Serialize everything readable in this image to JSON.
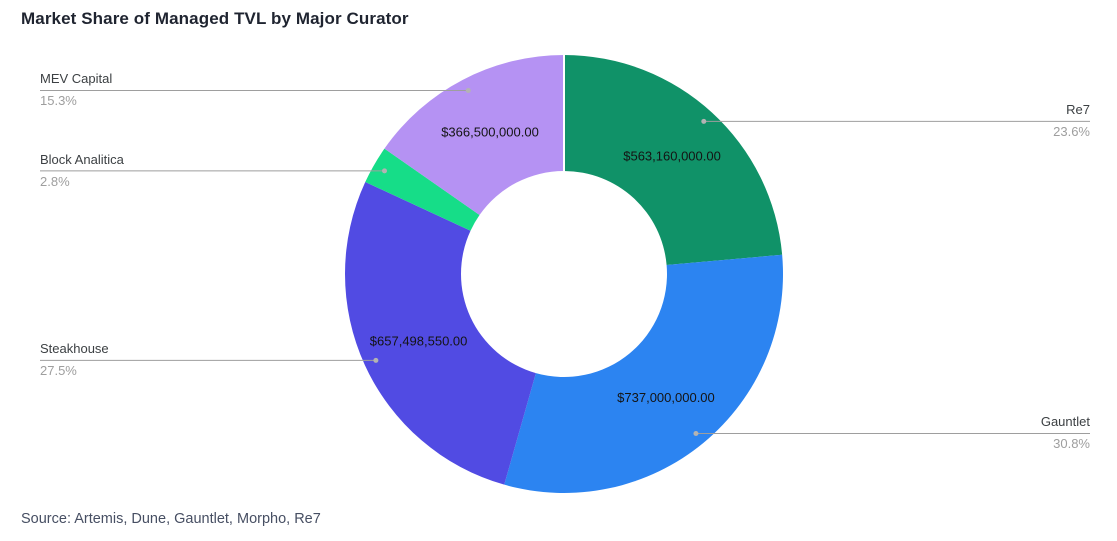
{
  "chart": {
    "title": "Market Share of Managed TVL by Major Curator",
    "source_note": "Source: Artemis, Dune, Gauntlet, Morpho, Re7"
  },
  "chart_data": {
    "type": "pie",
    "subtype": "donut",
    "title": "Market Share of Managed TVL by Major Curator",
    "source_note": "Source: Artemis, Dune, Gauntlet, Morpho, Re7",
    "direction": "clockwise",
    "start_angle_deg": 0,
    "inner_radius_ratio": 0.47,
    "legend": "none",
    "inside_labels": "dollar value",
    "outside_labels": "name and percent with leader line",
    "slices": [
      {
        "label": "Re7",
        "value": 563160000,
        "value_label": "$563,160,000.00",
        "percent": 23.6,
        "percent_label": "23.6%",
        "color": "#109268",
        "callout_side": "right"
      },
      {
        "label": "Gauntlet",
        "value": 737000000,
        "value_label": "$737,000,000.00",
        "percent": 30.8,
        "percent_label": "30.8%",
        "color": "#2c84f1",
        "callout_side": "right"
      },
      {
        "label": "Steakhouse",
        "value": 657498550,
        "value_label": "$657,498,550.00",
        "percent": 27.5,
        "percent_label": "27.5%",
        "color": "#514be3",
        "callout_side": "left"
      },
      {
        "label": "Block Analitica",
        "value": null,
        "value_label": null,
        "percent": 2.8,
        "percent_label": "2.8%",
        "color": "#16dd88",
        "callout_side": "left"
      },
      {
        "label": "MEV Capital",
        "value": 366500000,
        "value_label": "$366,500,000.00",
        "percent": 15.3,
        "percent_label": "15.3%",
        "color": "#b592f3",
        "callout_side": "left"
      }
    ],
    "style": {
      "leader_line_color": "#9e9e9e",
      "leader_dot_color": "#b3b3b3",
      "name_label_color": "#3c4043",
      "percent_label_color": "#9e9e9e",
      "value_label_color": "#141414",
      "background": "#ffffff"
    }
  }
}
